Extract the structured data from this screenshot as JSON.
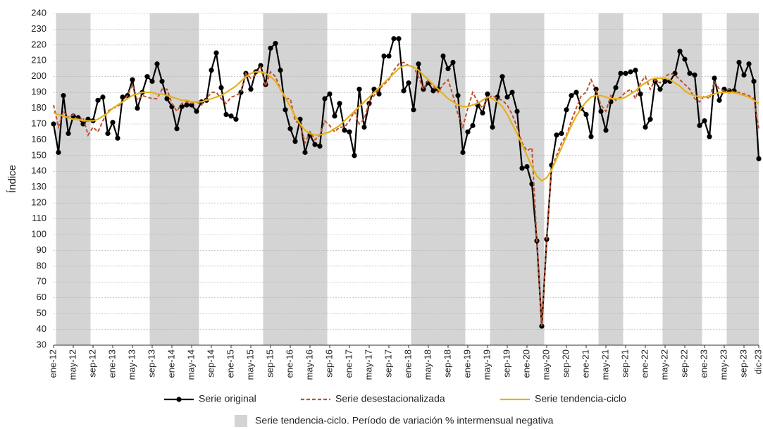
{
  "chart_data": {
    "type": "line",
    "y_label": "Índice",
    "ylim": [
      30,
      240
    ],
    "yticks": [
      30,
      40,
      50,
      60,
      70,
      80,
      90,
      100,
      110,
      120,
      130,
      140,
      150,
      160,
      170,
      180,
      190,
      200,
      210,
      220,
      230,
      240
    ],
    "grid": true,
    "categories": [
      "ene-12",
      null,
      null,
      null,
      "may-12",
      null,
      null,
      null,
      "sep-12",
      null,
      null,
      null,
      "ene-13",
      null,
      null,
      null,
      "may-13",
      null,
      null,
      null,
      "sep-13",
      null,
      null,
      null,
      "ene-14",
      null,
      null,
      null,
      "may-14",
      null,
      null,
      null,
      "sep-14",
      null,
      null,
      null,
      "ene-15",
      null,
      null,
      null,
      "may-15",
      null,
      null,
      null,
      "sep-15",
      null,
      null,
      null,
      "ene-16",
      null,
      null,
      null,
      "may-16",
      null,
      null,
      null,
      "sep-16",
      null,
      null,
      null,
      "ene-17",
      null,
      null,
      null,
      "may-17",
      null,
      null,
      null,
      "sep-17",
      null,
      null,
      null,
      "ene-18",
      null,
      null,
      null,
      "may-18",
      null,
      null,
      null,
      "sep-18",
      null,
      null,
      null,
      "ene-19",
      null,
      null,
      null,
      "may-19",
      null,
      null,
      null,
      "sep-19",
      null,
      null,
      null,
      "ene-20",
      null,
      null,
      null,
      "may-20",
      null,
      null,
      null,
      "sep-20",
      null,
      null,
      null,
      "ene-21",
      null,
      null,
      null,
      "may-21",
      null,
      null,
      null,
      "sep-21",
      null,
      null,
      null,
      "ene-22",
      null,
      null,
      null,
      "may-22",
      null,
      null,
      null,
      "sep-22",
      null,
      null,
      null,
      "ene-23",
      null,
      null,
      null,
      "may-23",
      null,
      null,
      null,
      "sep-23",
      null,
      null,
      "dic-23"
    ],
    "series": [
      {
        "name": "Serie original",
        "color": "#000000",
        "markers": true,
        "values": [
          170,
          152,
          188,
          164,
          175,
          174,
          170,
          173,
          172,
          185,
          187,
          164,
          171,
          161,
          187,
          188,
          198,
          180,
          190,
          200,
          197,
          208,
          197,
          186,
          181,
          167,
          181,
          182,
          182,
          178,
          184,
          185,
          204,
          215,
          193,
          176,
          175,
          173,
          190,
          202,
          192,
          203,
          207,
          195,
          218,
          221,
          204,
          179,
          167,
          159,
          173,
          152,
          163,
          157,
          156,
          186,
          189,
          175,
          183,
          166,
          165,
          150,
          192,
          168,
          183,
          192,
          189,
          213,
          213,
          224,
          224,
          191,
          196,
          179,
          208,
          192,
          196,
          191,
          192,
          213,
          205,
          209,
          188,
          152,
          165,
          169,
          182,
          177,
          189,
          168,
          187,
          200,
          187,
          190,
          178,
          142,
          143,
          132,
          96,
          42,
          97,
          144,
          163,
          164,
          179,
          188,
          190,
          180,
          176,
          162,
          192,
          178,
          166,
          184,
          193,
          202,
          202,
          203,
          204,
          189,
          168,
          173,
          197,
          192,
          197,
          197,
          202,
          216,
          211,
          202,
          201,
          169,
          172,
          162,
          199,
          185,
          192,
          191,
          191,
          209,
          201,
          208,
          197,
          148
        ]
      },
      {
        "name": "Serie desestacionalizada",
        "color": "#c0502a",
        "dashed": true,
        "values": [
          182,
          168,
          178,
          174,
          176,
          172,
          174,
          163,
          168,
          165,
          172,
          178,
          180,
          181,
          184,
          188,
          195,
          185,
          188,
          187,
          186,
          186,
          192,
          192,
          183,
          178,
          183,
          184,
          183,
          184,
          182,
          186,
          190,
          190,
          186,
          183,
          187,
          188,
          190,
          202,
          199,
          201,
          206,
          194,
          203,
          200,
          192,
          186,
          186,
          172,
          170,
          158,
          165,
          160,
          163,
          172,
          169,
          165,
          168,
          168,
          172,
          178,
          170,
          173,
          184,
          188,
          192,
          195,
          198,
          204,
          208,
          209,
          207,
          206,
          200,
          192,
          198,
          194,
          190,
          195,
          198,
          188,
          176,
          168,
          180,
          190,
          184,
          180,
          186,
          188,
          186,
          185,
          182,
          176,
          168,
          158,
          153,
          155,
          96,
          42,
          97,
          142,
          150,
          158,
          163,
          172,
          180,
          188,
          190,
          198,
          191,
          182,
          178,
          188,
          185,
          187,
          190,
          192,
          186,
          196,
          200,
          192,
          198,
          196,
          200,
          202,
          201,
          198,
          195,
          192,
          186,
          184,
          188,
          186,
          197,
          192,
          191,
          192,
          190,
          190,
          189,
          188,
          186,
          167
        ]
      },
      {
        "name": "Serie tendencia-ciclo",
        "color": "#e3b21c",
        "values": [
          177,
          176,
          175,
          174,
          173,
          173,
          172,
          172,
          172,
          173,
          175,
          177,
          180,
          182,
          184,
          186,
          188,
          189,
          190,
          190,
          190,
          189,
          189,
          188,
          187,
          186,
          185,
          185,
          184,
          184,
          184,
          185,
          186,
          187,
          188,
          190,
          192,
          194,
          197,
          200,
          202,
          203,
          203,
          202,
          200,
          197,
          192,
          187,
          181,
          175,
          170,
          166,
          164,
          163,
          163,
          164,
          165,
          167,
          169,
          172,
          175,
          178,
          181,
          184,
          187,
          190,
          193,
          196,
          199,
          202,
          205,
          207,
          207,
          206,
          204,
          201,
          198,
          195,
          192,
          189,
          186,
          184,
          182,
          181,
          181,
          182,
          183,
          185,
          187,
          186,
          184,
          181,
          176,
          170,
          164,
          157,
          150,
          143,
          137,
          134,
          136,
          141,
          148,
          155,
          162,
          169,
          175,
          180,
          184,
          187,
          188,
          188,
          187,
          186,
          186,
          186,
          187,
          189,
          191,
          194,
          196,
          198,
          199,
          199,
          199,
          198,
          196,
          194,
          191,
          189,
          188,
          187,
          187,
          188,
          189,
          190,
          190,
          190,
          190,
          189,
          188,
          187,
          185,
          183
        ]
      }
    ],
    "negative_periods": {
      "label": "Serie tendencia-ciclo. Período de variación % intermensual negativa",
      "color": "#d4d4d4",
      "ranges": [
        [
          1,
          7
        ],
        [
          20,
          29
        ],
        [
          43,
          55
        ],
        [
          73,
          83
        ],
        [
          89,
          99
        ],
        [
          111,
          115
        ],
        [
          124,
          131
        ],
        [
          137,
          143
        ]
      ]
    }
  }
}
